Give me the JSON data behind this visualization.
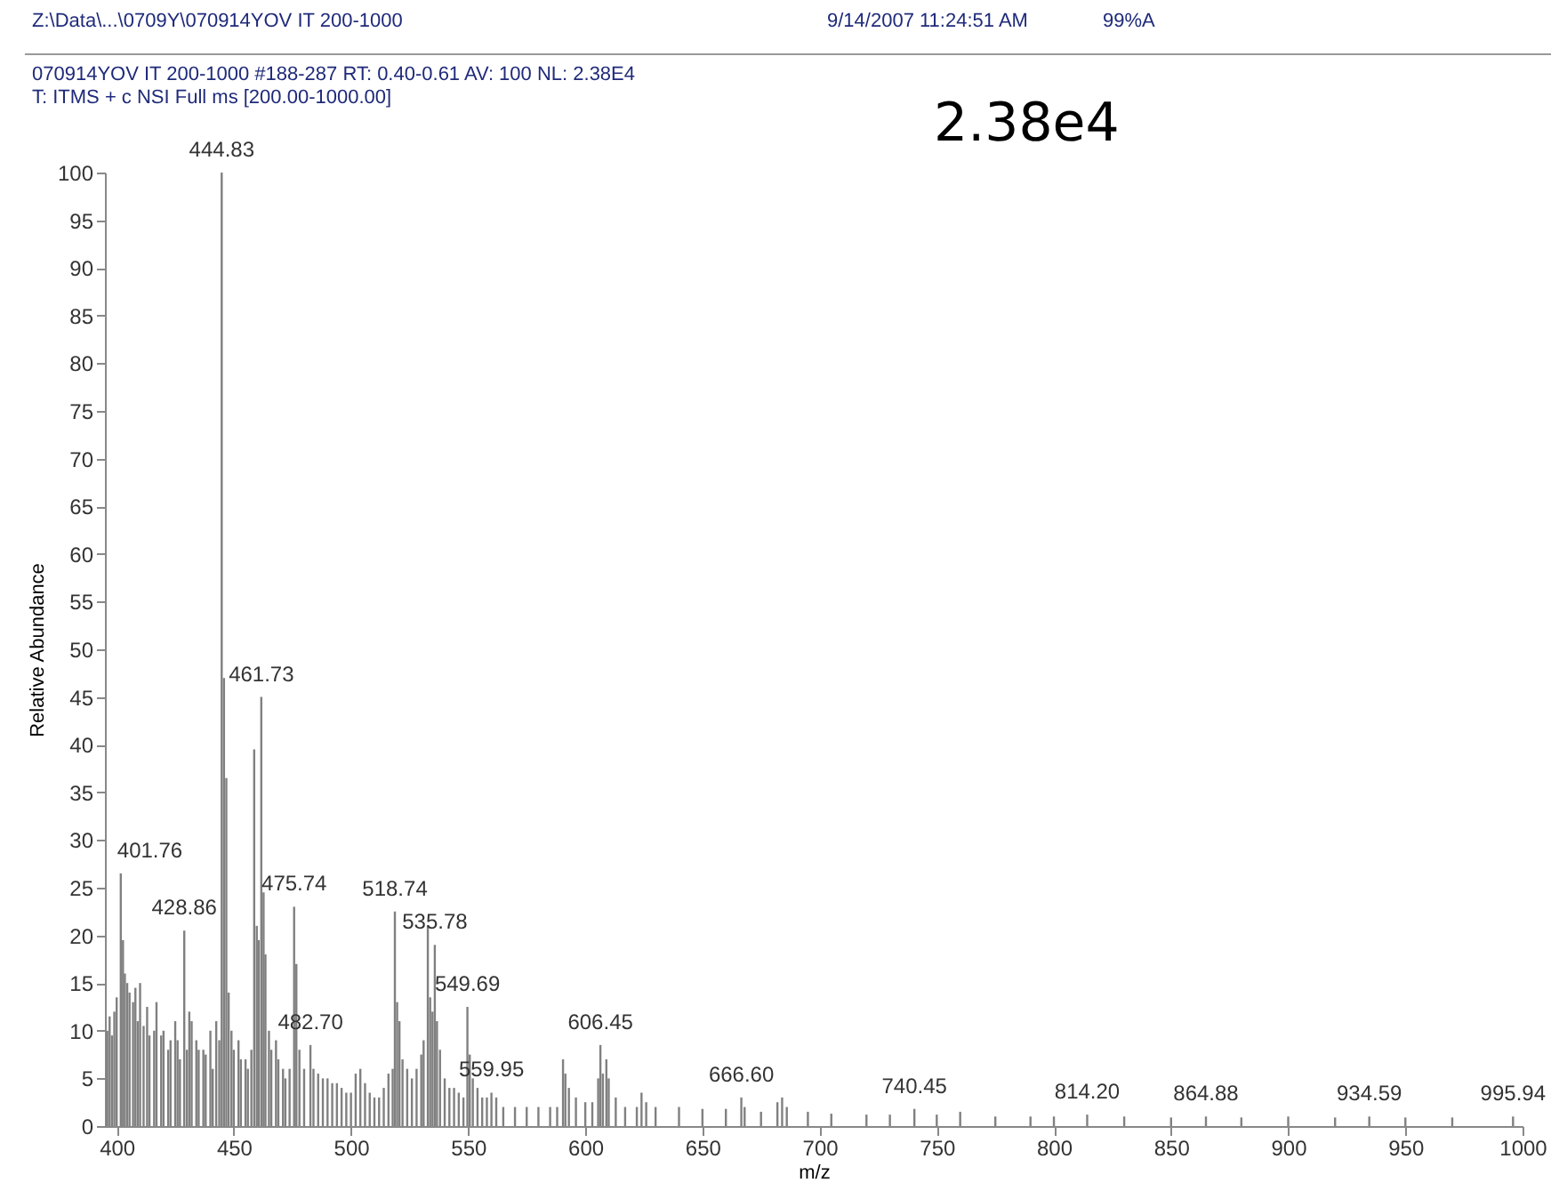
{
  "chart_data": {
    "type": "bar",
    "title": "Z:\\Data\\...\\0709Y\\070914YOV IT 200-1000",
    "xlabel": "m/z",
    "ylabel": "Relative Abundance",
    "color": "#808080",
    "xlim": [
      395,
      1000
    ],
    "ylim": [
      0,
      100
    ],
    "xticks": [
      400,
      450,
      500,
      550,
      600,
      650,
      700,
      750,
      800,
      850,
      900,
      950,
      1000
    ],
    "yticks": [
      0,
      5,
      10,
      15,
      20,
      25,
      30,
      35,
      40,
      45,
      50,
      55,
      60,
      65,
      70,
      75,
      80,
      85,
      90,
      95,
      100
    ],
    "x": [
      396,
      397,
      398,
      399,
      400,
      401.76,
      402.7,
      403.5,
      404.5,
      405.5,
      407,
      408,
      409,
      410,
      411.5,
      413,
      414,
      416,
      417,
      419,
      420,
      422,
      423,
      425,
      426,
      427,
      428.86,
      430,
      431,
      432,
      434,
      435,
      437,
      438,
      440,
      441,
      442.5,
      443.8,
      444.83,
      445.8,
      446.8,
      447.8,
      449,
      450,
      452,
      453,
      455,
      456,
      457.5,
      458.7,
      459.8,
      460.6,
      461.73,
      462.7,
      463.5,
      465,
      466,
      468,
      469,
      471,
      472,
      473.8,
      475.74,
      476.7,
      478,
      480,
      482.7,
      484,
      486,
      488,
      490,
      492,
      494,
      496,
      498,
      500,
      502,
      504,
      506,
      508,
      510,
      512,
      514,
      516,
      517.8,
      518.74,
      519.7,
      520.7,
      522,
      524,
      526,
      528,
      530,
      531,
      532.8,
      533.8,
      534.8,
      535.78,
      536.7,
      538,
      540,
      542,
      544,
      546,
      548,
      549.69,
      550.7,
      552,
      554,
      556,
      558,
      559.95,
      562,
      565,
      570,
      575,
      580,
      585,
      588,
      590.5,
      591.5,
      593,
      596,
      600,
      603,
      605.5,
      606.45,
      607.5,
      609,
      610,
      613,
      617,
      622,
      624,
      626,
      630,
      640,
      650,
      660,
      666.6,
      668,
      675,
      682,
      684,
      686,
      695,
      705,
      720,
      730,
      740.45,
      750,
      760,
      775,
      790,
      800,
      814.2,
      830,
      850,
      864.88,
      880,
      900,
      920,
      934.59,
      950,
      970,
      995.94
    ],
    "values": [
      10,
      11.5,
      9.5,
      12,
      13.5,
      26.5,
      19.5,
      16,
      15,
      14,
      13,
      14.5,
      11,
      15,
      10.5,
      12.5,
      9.5,
      10,
      13,
      9.5,
      10,
      8,
      9,
      11,
      9,
      7,
      20.5,
      8,
      12,
      11,
      9,
      8,
      8,
      7.5,
      10,
      6,
      11,
      9,
      100,
      47,
      36.5,
      14,
      10,
      8,
      9,
      7,
      7,
      6,
      8,
      39.5,
      21,
      19.5,
      45,
      24.5,
      18,
      10,
      8,
      9,
      7,
      6,
      5,
      6,
      23,
      17,
      8,
      6,
      8.5,
      6,
      5.5,
      5,
      5,
      4.5,
      4.5,
      4,
      3.5,
      3.5,
      5.5,
      6,
      4.5,
      3.5,
      3,
      3,
      4,
      5.5,
      6,
      22.5,
      13,
      11,
      7,
      6,
      5,
      6,
      7.5,
      9,
      21,
      13.5,
      12,
      19,
      11,
      8,
      5,
      4,
      4,
      3.5,
      3,
      12.5,
      7.5,
      5,
      4,
      3,
      3,
      3.5,
      3,
      2,
      2,
      2,
      2,
      2,
      2,
      7,
      5.5,
      4,
      3,
      2.5,
      2.5,
      5,
      8.5,
      5.5,
      7,
      5,
      3,
      2,
      2,
      3.5,
      2.5,
      2,
      2,
      1.8,
      1.8,
      3,
      2,
      1.5,
      2.5,
      3,
      2,
      1.5,
      1.3,
      1.2,
      1.2,
      1.8,
      1.2,
      1.5,
      1,
      1,
      1,
      1.2,
      1,
      0.9,
      1,
      0.9,
      1,
      0.9,
      1,
      0.9,
      0.9,
      1
    ],
    "annotations": [
      "9/14/2007 11:24:51 AM",
      "99%A",
      "070914YOV IT 200-1000 #188-287   RT: 0.40-0.61   AV: 100   NL: 2.38E4",
      "T: ITMS + c NSI Full ms [200.00-1000.00]",
      "2.38e4",
      {
        "text": "401.76",
        "x": 401.76,
        "y": 26.5
      },
      {
        "text": "428.86",
        "x": 428.86,
        "y": 20.5
      },
      {
        "text": "444.83",
        "x": 444.83,
        "y": 100
      },
      {
        "text": "461.73",
        "x": 461.73,
        "y": 45
      },
      {
        "text": "475.74",
        "x": 475.74,
        "y": 23
      },
      {
        "text": "482.70",
        "x": 482.7,
        "y": 8.5
      },
      {
        "text": "518.74",
        "x": 518.74,
        "y": 22.5
      },
      {
        "text": "535.78",
        "x": 535.78,
        "y": 19
      },
      {
        "text": "549.69",
        "x": 549.69,
        "y": 12.5
      },
      {
        "text": "559.95",
        "x": 559.95,
        "y": 3.5
      },
      {
        "text": "606.45",
        "x": 606.45,
        "y": 8.5
      },
      {
        "text": "666.60",
        "x": 666.6,
        "y": 3
      },
      {
        "text": "740.45",
        "x": 740.45,
        "y": 1.8
      },
      {
        "text": "814.20",
        "x": 814.2,
        "y": 1.2
      },
      {
        "text": "864.88",
        "x": 864.88,
        "y": 1
      },
      {
        "text": "934.59",
        "x": 934.59,
        "y": 1
      },
      {
        "text": "995.94",
        "x": 995.94,
        "y": 1
      }
    ]
  }
}
